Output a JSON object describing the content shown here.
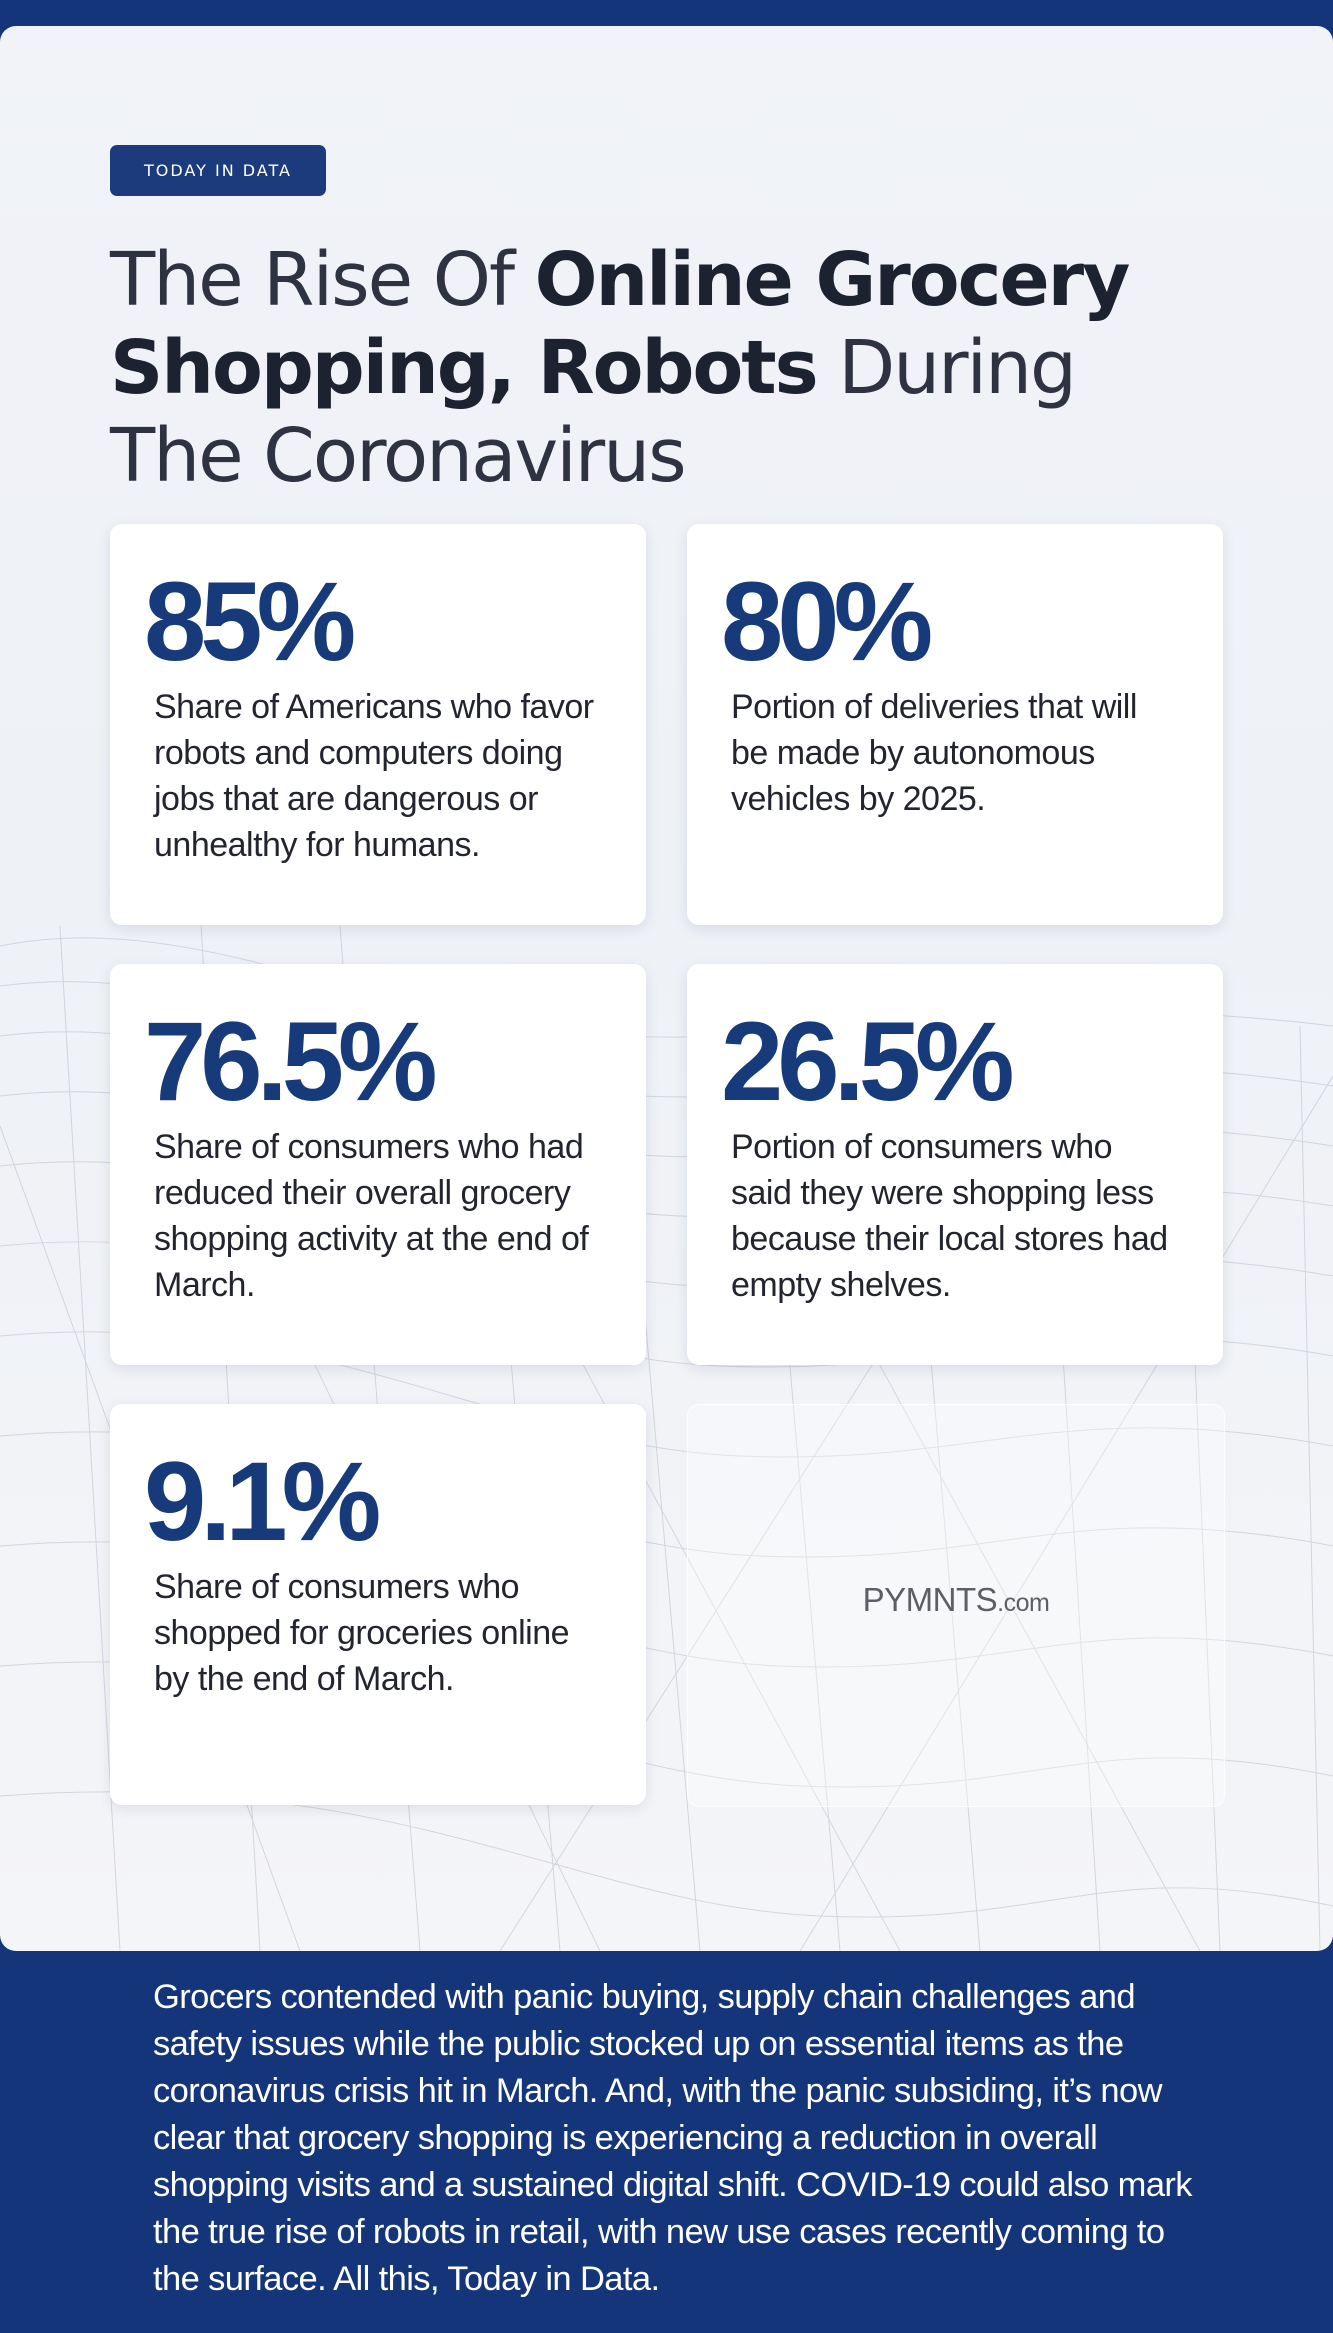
{
  "header": {
    "badge": "TODAY IN DATA",
    "title_part1": "The Rise Of ",
    "title_bold": "Online Grocery Shopping, Robots",
    "title_part2": " During The Coronavirus"
  },
  "stats": [
    {
      "value": "85%",
      "description": "Share of Americans who favor robots and computers doing jobs that are dangerous or unhealthy for humans."
    },
    {
      "value": "80%",
      "description": "Portion of deliveries that will be made by autonomous vehicles by 2025."
    },
    {
      "value": "76.5%",
      "description": "Share of consumers who had reduced their overall grocery shopping activity at the end of March."
    },
    {
      "value": "26.5%",
      "description": "Portion of consumers who said they were shopping less because their local stores had empty shelves."
    },
    {
      "value": "9.1%",
      "description": "Share of consumers who shopped for groceries online by the end of March."
    }
  ],
  "logo": {
    "name": "PYMNTS",
    "suffix": ".com"
  },
  "footer": {
    "text": "Grocers contended with panic buying, supply chain challenges and safety issues while the public stocked up on essential items as the coronavirus crisis hit in March. And, with the panic subsiding, it’s now clear that grocery shopping is experiencing a reduction in overall shopping visits and a sustained digital shift. COVID-19 could also mark the true rise of robots in retail, with new use cases recently coming to the surface. All this, Today in Data."
  },
  "colors": {
    "navy": "#14357a",
    "stat_blue": "#173a7a",
    "panel": "#f1f3f8"
  }
}
